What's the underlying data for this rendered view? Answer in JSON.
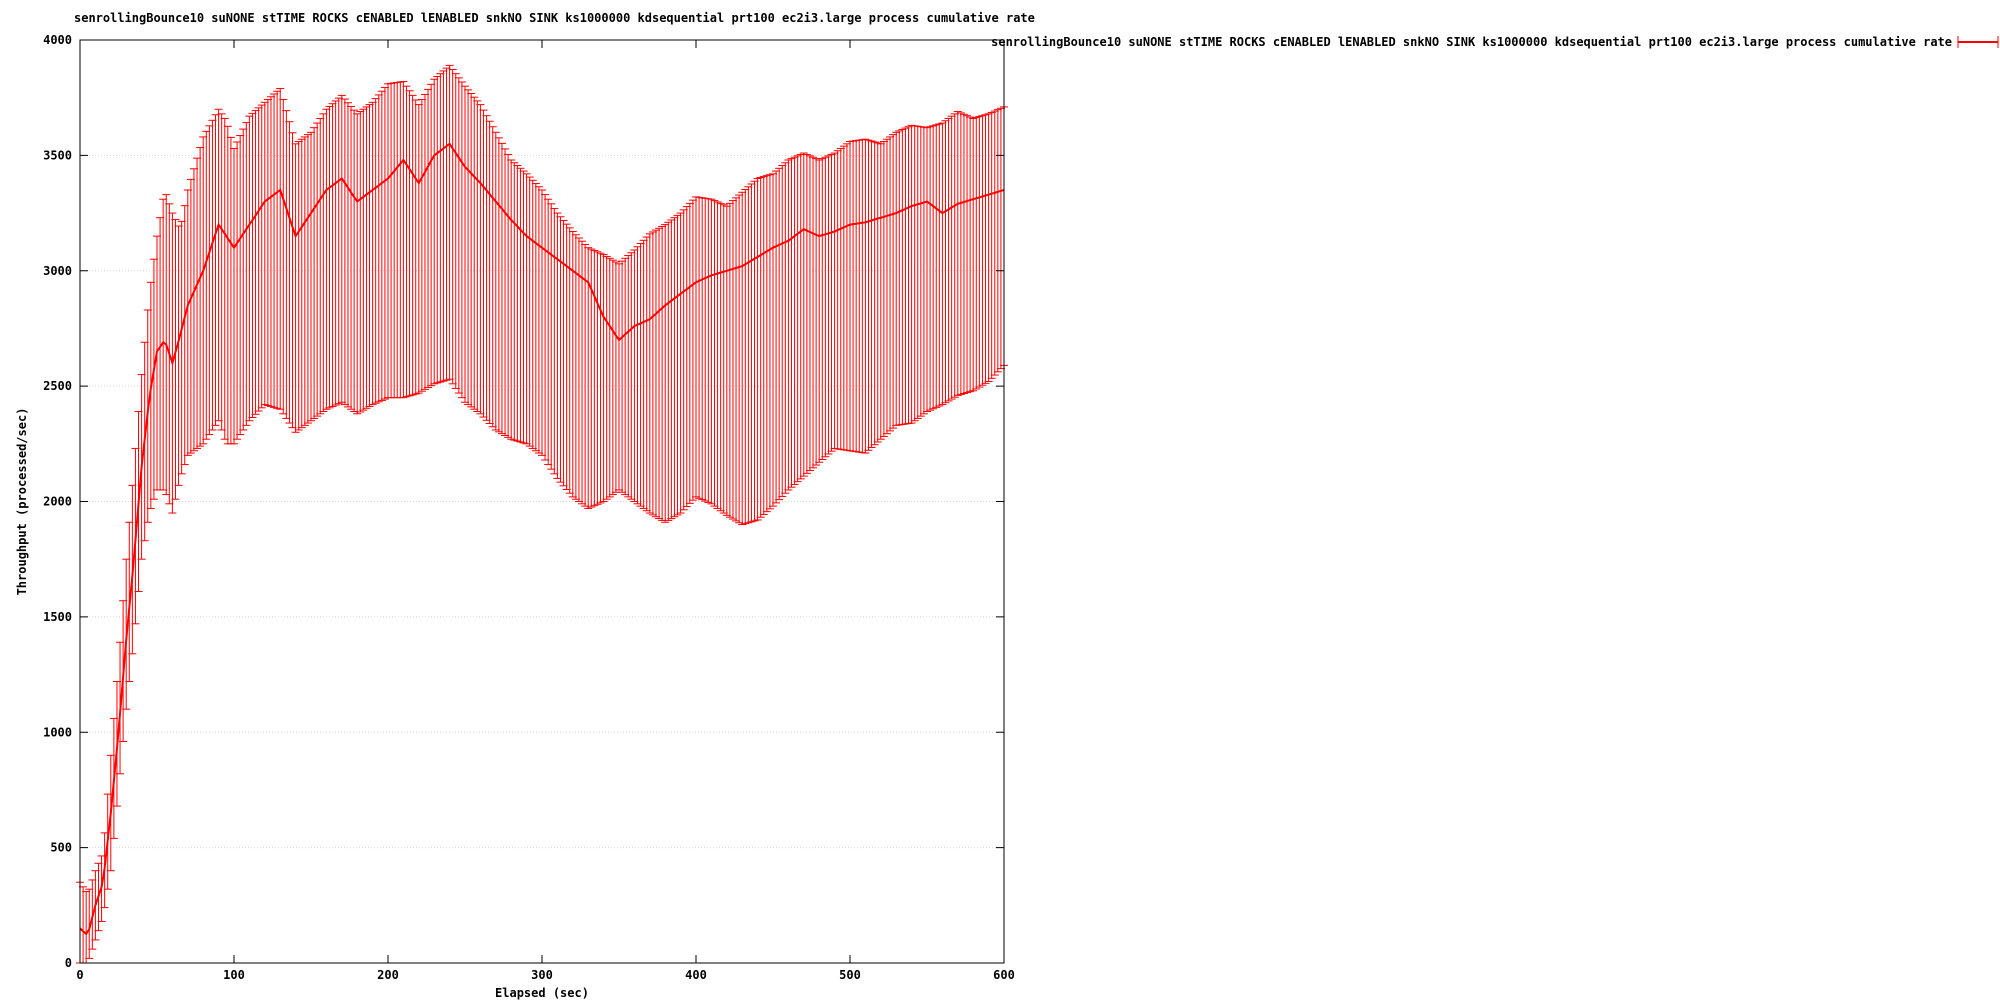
{
  "chart_data": {
    "type": "line",
    "title": "senrollingBounce10 suNONE stTIME ROCKS cENABLED lENABLED snkNO SINK ks1000000 kdsequential prt100 ec2i3.large process cumulative rate",
    "xlabel": "Elapsed (sec)",
    "ylabel": "Throughput (processed/sec)",
    "xlim": [
      0,
      600
    ],
    "ylim": [
      0,
      4000
    ],
    "x_ticks": [
      0,
      100,
      200,
      300,
      400,
      500,
      600
    ],
    "y_ticks": [
      0,
      500,
      1000,
      1500,
      2000,
      2500,
      3000,
      3500,
      4000
    ],
    "grid": "horizontal",
    "legend_position": "top-right, outside plot",
    "error_bars": true,
    "series": [
      {
        "name": "senrollingBounce10 suNONE stTIME ROCKS cENABLED lENABLED snkNO SINK ks1000000 kdsequential prt100 ec2i3.large process cumulative rate",
        "color": "#ff0000",
        "x": [
          0,
          5,
          10,
          15,
          20,
          25,
          30,
          35,
          40,
          45,
          50,
          55,
          60,
          65,
          70,
          80,
          90,
          95,
          100,
          110,
          120,
          130,
          140,
          150,
          160,
          170,
          180,
          190,
          200,
          210,
          220,
          230,
          240,
          250,
          260,
          270,
          280,
          290,
          300,
          310,
          320,
          330,
          340,
          350,
          360,
          370,
          380,
          390,
          400,
          410,
          420,
          430,
          440,
          450,
          460,
          470,
          480,
          490,
          500,
          510,
          520,
          530,
          540,
          550,
          560,
          570,
          580,
          590,
          600
        ],
        "y": [
          150,
          120,
          250,
          350,
          650,
          1000,
          1400,
          1750,
          2150,
          2450,
          2650,
          2700,
          2600,
          2720,
          2850,
          3000,
          3200,
          3150,
          3100,
          3200,
          3300,
          3350,
          3150,
          3250,
          3350,
          3400,
          3300,
          3350,
          3400,
          3480,
          3380,
          3500,
          3550,
          3450,
          3380,
          3300,
          3220,
          3150,
          3100,
          3050,
          3000,
          2950,
          2800,
          2700,
          2760,
          2790,
          2850,
          2900,
          2950,
          2980,
          3000,
          3020,
          3060,
          3100,
          3130,
          3180,
          3150,
          3170,
          3200,
          3210,
          3230,
          3250,
          3280,
          3300,
          3250,
          3290,
          3310,
          3330,
          3350
        ],
        "y_low": [
          0,
          0,
          100,
          200,
          400,
          750,
          1100,
          1400,
          1750,
          1950,
          2050,
          2050,
          1950,
          2100,
          2200,
          2250,
          2350,
          2250,
          2250,
          2350,
          2420,
          2400,
          2300,
          2350,
          2400,
          2430,
          2380,
          2420,
          2450,
          2450,
          2470,
          2510,
          2530,
          2430,
          2380,
          2310,
          2270,
          2250,
          2200,
          2100,
          2020,
          1970,
          2000,
          2050,
          2000,
          1950,
          1910,
          1950,
          2020,
          1990,
          1940,
          1900,
          1920,
          1980,
          2050,
          2110,
          2170,
          2230,
          2220,
          2210,
          2270,
          2330,
          2340,
          2390,
          2420,
          2460,
          2480,
          2520,
          2590
        ],
        "y_high": [
          350,
          300,
          400,
          480,
          900,
          1300,
          1750,
          2150,
          2550,
          2900,
          3150,
          3350,
          3250,
          3180,
          3350,
          3580,
          3700,
          3650,
          3530,
          3670,
          3730,
          3790,
          3550,
          3600,
          3700,
          3760,
          3680,
          3730,
          3810,
          3820,
          3720,
          3830,
          3890,
          3800,
          3720,
          3600,
          3480,
          3420,
          3350,
          3250,
          3170,
          3100,
          3070,
          3030,
          3090,
          3160,
          3200,
          3250,
          3320,
          3310,
          3280,
          3340,
          3400,
          3420,
          3480,
          3510,
          3480,
          3510,
          3560,
          3570,
          3550,
          3600,
          3630,
          3620,
          3640,
          3690,
          3660,
          3680,
          3710
        ]
      }
    ]
  }
}
